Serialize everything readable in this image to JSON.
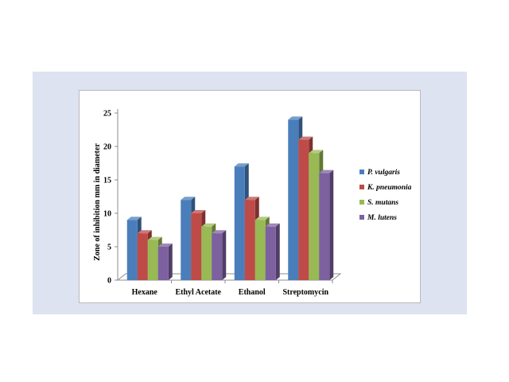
{
  "chart_data": {
    "type": "bar",
    "title": "",
    "xlabel": "",
    "ylabel": "Zone of inhibition mm in diameter",
    "ylim": [
      0,
      25
    ],
    "yticks": [
      "0",
      "5",
      "10",
      "15",
      "20",
      "25"
    ],
    "categories": [
      "Hexane",
      "Ethyl Acetate",
      "Ethanol",
      "Streptomycin"
    ],
    "series": [
      {
        "name": "P. vulgaris",
        "color": "#4a7ebb",
        "values": [
          9,
          12,
          17,
          24
        ]
      },
      {
        "name": "K. pneumonia",
        "color": "#be4b48",
        "values": [
          7,
          10,
          12,
          21
        ]
      },
      {
        "name": "S. mutans",
        "color": "#98b954",
        "values": [
          6,
          8,
          9,
          19
        ]
      },
      {
        "name": "M.  lutens",
        "color": "#7d60a0",
        "values": [
          5,
          7,
          8,
          16
        ]
      }
    ],
    "legend_position": "right",
    "grid": false,
    "style": "3d-clustered-column"
  }
}
